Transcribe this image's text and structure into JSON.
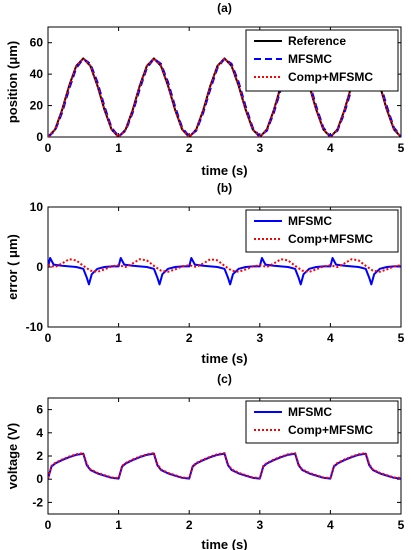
{
  "chart_data": [
    {
      "type": "line",
      "title": "(a)",
      "xlabel": "time (s)",
      "ylabel": "position (μm)",
      "xlim": [
        0,
        5
      ],
      "ylim": [
        0,
        70
      ],
      "xticks": [
        "0",
        "1",
        "2",
        "3",
        "4",
        "5"
      ],
      "yticks": [
        "0",
        "20",
        "40",
        "60"
      ],
      "legend_position": "top-right",
      "series": [
        {
          "name": "Reference",
          "color": "#000000",
          "style": "solid",
          "x": [
            0,
            0.1,
            0.2,
            0.3,
            0.4,
            0.5,
            0.6,
            0.7,
            0.8,
            0.9,
            1.0
          ],
          "y": [
            0,
            4.8,
            17.3,
            32.7,
            45.2,
            50,
            45.2,
            32.7,
            17.3,
            4.8,
            0
          ],
          "period": 1.0
        },
        {
          "name": "MFSMC",
          "color": "#0000ff",
          "style": "dashed",
          "x": [
            0,
            0.1,
            0.2,
            0.3,
            0.4,
            0.5,
            0.6,
            0.7,
            0.8,
            0.9,
            1.0
          ],
          "y": [
            0,
            4.0,
            15.5,
            30.5,
            43.8,
            49.8,
            46.6,
            35.0,
            19.5,
            6.0,
            0.4
          ],
          "period": 1.0
        },
        {
          "name": "Comp+MFSMC",
          "color": "#ff0000",
          "style": "dotted",
          "x": [
            0,
            0.1,
            0.2,
            0.3,
            0.4,
            0.5,
            0.6,
            0.7,
            0.8,
            0.9,
            1.0
          ],
          "y": [
            0,
            4.6,
            17.0,
            32.4,
            45.0,
            50,
            45.4,
            33.0,
            17.6,
            5.0,
            0
          ],
          "period": 1.0
        }
      ]
    },
    {
      "type": "line",
      "title": "(b)",
      "xlabel": "time (s)",
      "ylabel": "error ( μm)",
      "xlim": [
        0,
        5
      ],
      "ylim": [
        -10,
        10
      ],
      "xticks": [
        "0",
        "1",
        "2",
        "3",
        "4",
        "5"
      ],
      "yticks": [
        "-10",
        "0",
        "10"
      ],
      "legend_position": "top-right",
      "series": [
        {
          "name": "MFSMC",
          "color": "#0000ff",
          "style": "solid",
          "x": [
            0,
            0.03,
            0.08,
            0.2,
            0.4,
            0.5,
            0.55,
            0.58,
            0.62,
            0.7,
            0.8,
            0.9,
            1.0
          ],
          "y": [
            0,
            1.5,
            0.4,
            0.2,
            0.0,
            -0.3,
            -1.8,
            -2.9,
            -1.2,
            -0.3,
            0.0,
            0.1,
            0.1
          ],
          "period": 1.0
        },
        {
          "name": "Comp+MFSMC",
          "color": "#ff0000",
          "style": "dotted",
          "x": [
            0,
            0.1,
            0.2,
            0.3,
            0.4,
            0.5,
            0.6,
            0.7,
            0.8,
            0.9,
            1.0
          ],
          "y": [
            0.3,
            0.0,
            0.6,
            1.3,
            1.1,
            0.2,
            -0.6,
            -0.8,
            -0.4,
            0.1,
            0.3
          ],
          "period": 1.0
        }
      ]
    },
    {
      "type": "line",
      "title": "(c)",
      "xlabel": "time (s)",
      "ylabel": "voltage (V)",
      "xlim": [
        0,
        5
      ],
      "ylim": [
        -3,
        7
      ],
      "xticks": [
        "0",
        "1",
        "2",
        "3",
        "4",
        "5"
      ],
      "yticks": [
        "-2",
        "0",
        "2",
        "4",
        "6"
      ],
      "legend_position": "top-right",
      "series": [
        {
          "name": "MFSMC",
          "color": "#0000ff",
          "style": "solid",
          "x": [
            0,
            0.05,
            0.1,
            0.2,
            0.3,
            0.4,
            0.5,
            0.55,
            0.6,
            0.7,
            0.8,
            0.9,
            1.0
          ],
          "y": [
            0.05,
            1.1,
            1.35,
            1.65,
            1.9,
            2.1,
            2.2,
            1.2,
            0.8,
            0.5,
            0.3,
            0.12,
            0.05
          ],
          "period": 1.0
        },
        {
          "name": "Comp+MFSMC",
          "color": "#ff0000",
          "style": "dotted",
          "x": [
            0,
            0.05,
            0.1,
            0.2,
            0.3,
            0.4,
            0.5,
            0.55,
            0.6,
            0.7,
            0.8,
            0.9,
            1.0
          ],
          "y": [
            0.1,
            1.15,
            1.4,
            1.7,
            1.95,
            2.15,
            2.25,
            1.3,
            0.85,
            0.55,
            0.35,
            0.15,
            0.1
          ],
          "period": 1.0
        }
      ]
    }
  ]
}
